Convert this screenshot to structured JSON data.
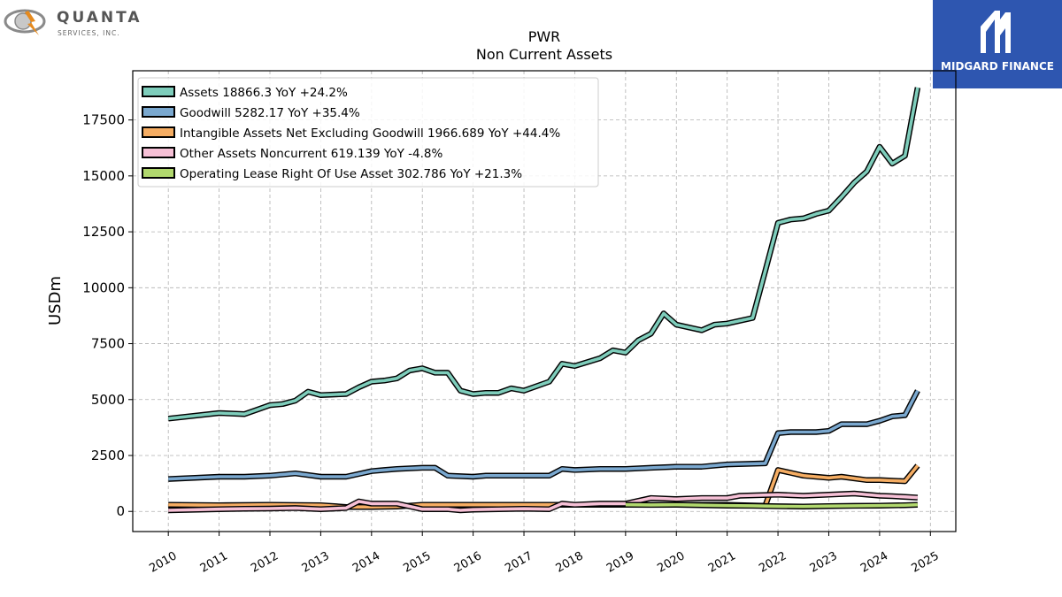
{
  "header": {
    "company_logo_name": "QUANTA",
    "company_logo_sub": "SERVICES, INC.",
    "brand_name": "MIDGARD FINANCE"
  },
  "chart_data": {
    "type": "line",
    "title": "PWR",
    "subtitle": "Non Current  Assets",
    "ylabel": "USDm",
    "xlabel": "",
    "ylim": [
      -900,
      19700
    ],
    "xlim": [
      2009.3,
      2025.5
    ],
    "yticks": [
      0,
      2500,
      5000,
      7500,
      10000,
      12500,
      15000,
      17500
    ],
    "ytick_labels": [
      "0",
      "2500",
      "5000",
      "7500",
      "10000",
      "12500",
      "15000",
      "17500"
    ],
    "xticks": [
      2010,
      2011,
      2012,
      2013,
      2014,
      2015,
      2016,
      2017,
      2018,
      2019,
      2020,
      2021,
      2022,
      2023,
      2024,
      2025
    ],
    "xtick_labels": [
      "2010",
      "2011",
      "2012",
      "2013",
      "2014",
      "2015",
      "2016",
      "2017",
      "2018",
      "2019",
      "2020",
      "2021",
      "2022",
      "2023",
      "2024",
      "2025"
    ],
    "grid": true,
    "legend_position": "top-left",
    "series": [
      {
        "name": "Assets",
        "legend": "Assets  18866.3 YoY +24.2%",
        "color": "#7ecdbb",
        "x": [
          2010.0,
          2011.0,
          2011.5,
          2011.75,
          2012.0,
          2012.25,
          2012.5,
          2012.75,
          2013.0,
          2013.5,
          2013.75,
          2014.0,
          2014.25,
          2014.5,
          2014.75,
          2015.0,
          2015.25,
          2015.5,
          2015.75,
          2016.0,
          2016.25,
          2016.5,
          2016.75,
          2017.0,
          2017.5,
          2017.75,
          2018.0,
          2018.5,
          2018.75,
          2019.0,
          2019.25,
          2019.5,
          2019.75,
          2020.0,
          2020.5,
          2020.75,
          2021.0,
          2021.5,
          2021.75,
          2022.0,
          2022.25,
          2022.5,
          2022.75,
          2023.0,
          2023.25,
          2023.5,
          2023.75,
          2024.0,
          2024.25,
          2024.5,
          2024.75
        ],
        "y": [
          4150,
          4400,
          4350,
          4550,
          4750,
          4800,
          4950,
          5350,
          5200,
          5250,
          5550,
          5800,
          5850,
          5950,
          6300,
          6400,
          6200,
          6200,
          5400,
          5250,
          5300,
          5300,
          5500,
          5400,
          5800,
          6600,
          6500,
          6850,
          7200,
          7100,
          7650,
          7950,
          8850,
          8350,
          8100,
          8350,
          8400,
          8650,
          10750,
          12900,
          13050,
          13100,
          13300,
          13450,
          14050,
          14700,
          15200,
          16300,
          15550,
          15900,
          18950
        ]
      },
      {
        "name": "Goodwill",
        "legend": "Goodwill  5282.17 YoY +35.4%",
        "color": "#7aa8cf",
        "x": [
          2010.0,
          2011.0,
          2011.5,
          2012.0,
          2012.5,
          2013.0,
          2013.5,
          2014.0,
          2014.25,
          2014.5,
          2015.0,
          2015.25,
          2015.5,
          2016.0,
          2016.25,
          2017.0,
          2017.5,
          2017.75,
          2018.0,
          2018.5,
          2019.0,
          2019.5,
          2020.0,
          2020.5,
          2021.0,
          2021.75,
          2022.0,
          2022.25,
          2022.75,
          2023.0,
          2023.25,
          2023.75,
          2024.0,
          2024.25,
          2024.5,
          2024.75
        ],
        "y": [
          1450,
          1550,
          1550,
          1600,
          1700,
          1550,
          1550,
          1800,
          1850,
          1900,
          1950,
          1950,
          1600,
          1550,
          1600,
          1600,
          1600,
          1900,
          1850,
          1900,
          1900,
          1950,
          2000,
          2000,
          2100,
          2150,
          3500,
          3550,
          3550,
          3600,
          3900,
          3900,
          4050,
          4250,
          4300,
          5400
        ]
      },
      {
        "name": "Intangible Assets Net Excluding Goodwill",
        "legend": "Intangible Assets Net Excluding Goodwill  1966.689 YoY +44.4%",
        "color": "#f5ad63",
        "x": [
          2010.0,
          2011.0,
          2012.0,
          2013.0,
          2013.5,
          2014.0,
          2014.5,
          2015.0,
          2016.0,
          2017.0,
          2018.0,
          2019.0,
          2020.0,
          2021.0,
          2021.75,
          2022.0,
          2022.5,
          2023.0,
          2023.25,
          2023.75,
          2024.0,
          2024.5,
          2024.75
        ],
        "y": [
          300,
          280,
          300,
          280,
          200,
          200,
          220,
          300,
          300,
          300,
          300,
          300,
          300,
          300,
          250,
          1850,
          1600,
          1500,
          1550,
          1400,
          1400,
          1350,
          2050
        ]
      },
      {
        "name": "Other Assets Noncurrent",
        "legend": "Other Assets Noncurrent  619.139 YoY -4.8%",
        "color": "#f6c0d6",
        "x": [
          2010.0,
          2011.0,
          2011.5,
          2012.0,
          2012.5,
          2013.0,
          2013.5,
          2013.75,
          2014.0,
          2014.5,
          2015.0,
          2015.5,
          2015.75,
          2016.0,
          2016.5,
          2017.0,
          2017.5,
          2017.75,
          2018.0,
          2018.5,
          2019.0,
          2019.5,
          2020.0,
          2020.5,
          2021.0,
          2021.25,
          2022.0,
          2022.5,
          2023.0,
          2023.5,
          2024.0,
          2024.25,
          2024.75
        ],
        "y": [
          50,
          100,
          120,
          130,
          150,
          100,
          150,
          450,
          350,
          350,
          100,
          100,
          50,
          80,
          100,
          120,
          100,
          350,
          300,
          350,
          350,
          600,
          550,
          600,
          600,
          700,
          750,
          700,
          750,
          800,
          700,
          680,
          620
        ]
      },
      {
        "name": "Operating Lease Right Of Use Asset",
        "legend": "Operating Lease Right Of Use Asset  302.786 YoY +21.3%",
        "color": "#b1d86e",
        "x": [
          2019.0,
          2019.5,
          2020.0,
          2020.5,
          2021.0,
          2021.5,
          2022.0,
          2022.5,
          2023.0,
          2023.5,
          2024.0,
          2024.5,
          2024.75
        ],
        "y": [
          300,
          290,
          300,
          280,
          260,
          250,
          230,
          220,
          240,
          250,
          260,
          280,
          300
        ]
      }
    ]
  }
}
